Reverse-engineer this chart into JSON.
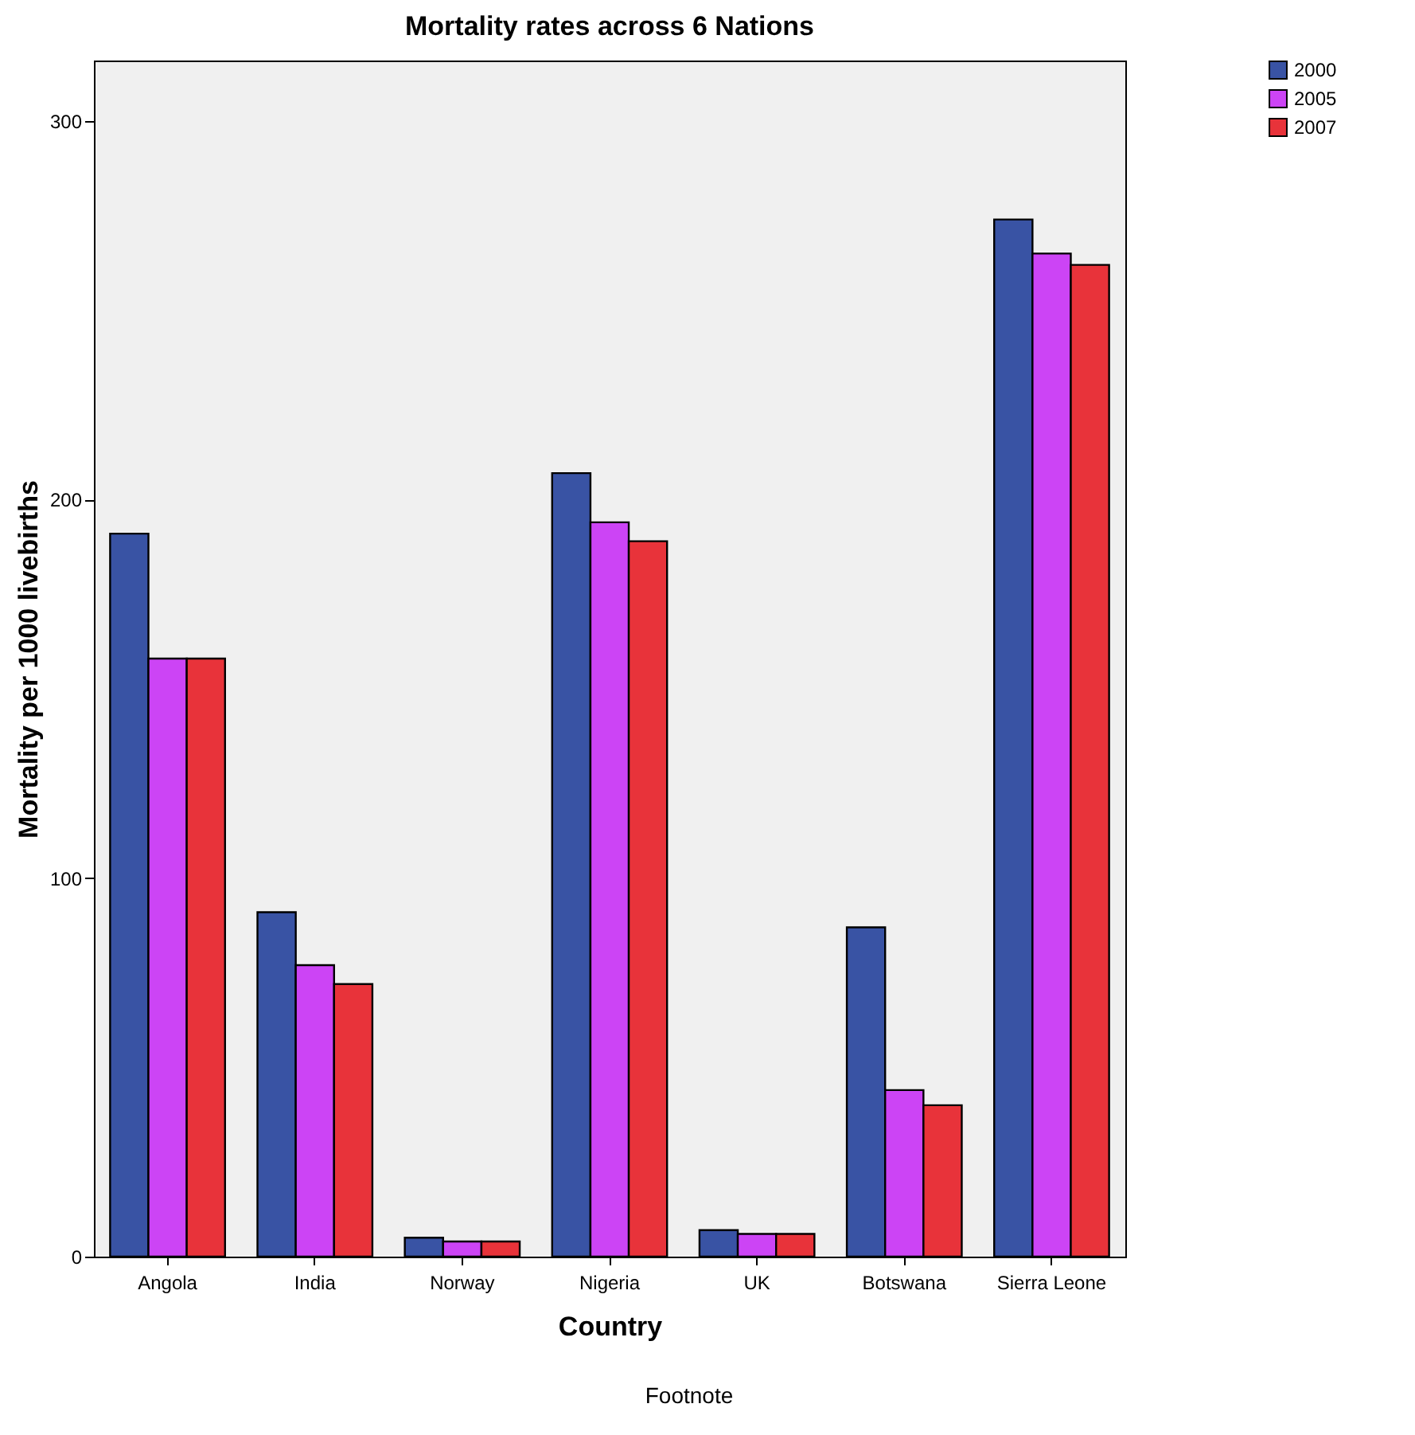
{
  "chart_data": {
    "type": "bar",
    "title": "Mortality rates across 6 Nations",
    "xlabel": "Country",
    "ylabel": "Mortality per 1000 livebirths",
    "categories": [
      "Angola",
      "India",
      "Norway",
      "Nigeria",
      "UK",
      "Botswana",
      "Sierra Leone"
    ],
    "series": [
      {
        "name": "2000",
        "color": "#3953a4",
        "values": [
          191,
          91,
          5,
          207,
          7,
          87,
          274
        ]
      },
      {
        "name": "2005",
        "color": "#cc44f5",
        "values": [
          158,
          77,
          4,
          194,
          6,
          44,
          265
        ]
      },
      {
        "name": "2007",
        "color": "#e8333a",
        "values": [
          158,
          72,
          4,
          189,
          6,
          40,
          262
        ]
      }
    ],
    "ylim": [
      0,
      316
    ],
    "yticks": [
      0,
      100,
      200,
      300
    ],
    "grid": false,
    "legend": "top right",
    "annotations": [
      "Footnote"
    ]
  }
}
